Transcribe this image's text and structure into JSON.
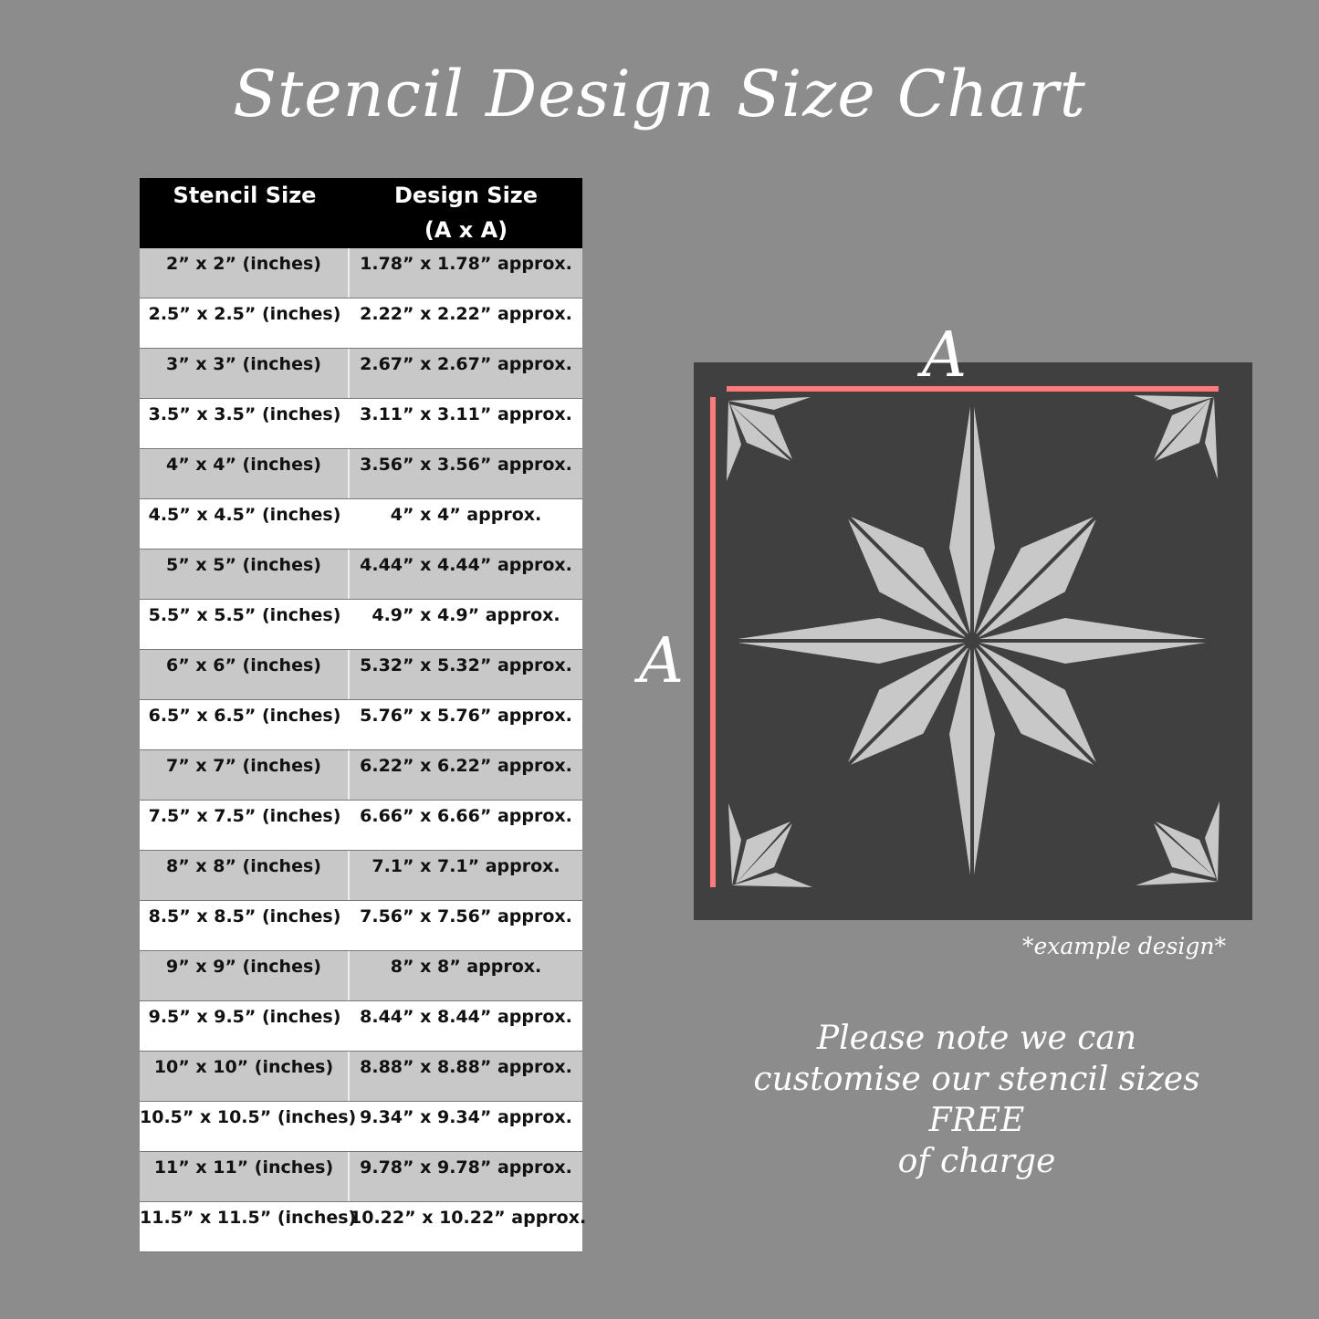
{
  "title": "Stencil Design Size Chart",
  "table": {
    "headers": [
      "Stencil Size",
      "Design Size",
      "(A x A)"
    ],
    "rows": [
      [
        "2” x 2” (inches)",
        "1.78” x 1.78” approx."
      ],
      [
        "2.5” x 2.5” (inches)",
        "2.22” x 2.22” approx."
      ],
      [
        "3” x 3” (inches)",
        "2.67” x 2.67” approx."
      ],
      [
        "3.5” x 3.5” (inches)",
        "3.11” x 3.11” approx."
      ],
      [
        "4” x 4” (inches)",
        "3.56” x 3.56” approx."
      ],
      [
        "4.5” x 4.5” (inches)",
        "4” x 4” approx."
      ],
      [
        "5” x 5” (inches)",
        "4.44” x 4.44” approx."
      ],
      [
        "5.5” x 5.5” (inches)",
        "4.9” x 4.9” approx."
      ],
      [
        "6” x 6” (inches)",
        "5.32” x 5.32” approx."
      ],
      [
        "6.5” x 6.5” (inches)",
        "5.76” x 5.76” approx."
      ],
      [
        "7” x 7” (inches)",
        "6.22” x 6.22” approx."
      ],
      [
        "7.5” x 7.5” (inches)",
        "6.66” x 6.66” approx."
      ],
      [
        "8” x 8” (inches)",
        "7.1” x 7.1” approx."
      ],
      [
        "8.5” x 8.5” (inches)",
        "7.56” x 7.56” approx."
      ],
      [
        "9” x 9” (inches)",
        "8” x 8” approx."
      ],
      [
        "9.5” x 9.5” (inches)",
        "8.44” x 8.44” approx."
      ],
      [
        "10” x 10” (inches)",
        "8.88” x 8.88” approx."
      ],
      [
        "10.5” x 10.5” (inches)",
        "9.34” x 9.34” approx."
      ],
      [
        "11” x 11” (inches)",
        "9.78” x 9.78” approx."
      ],
      [
        "11.5” x 11.5” (inches)",
        "10.22” x 10.22” approx."
      ]
    ]
  },
  "diagram": {
    "dimension_label_top": "A",
    "dimension_label_left": "A",
    "caption": "*example design*",
    "colors": {
      "background": "#404040",
      "star": "#c8c8c8",
      "dimension_line": "#ff7b7b"
    }
  },
  "note": [
    "Please note we can",
    "customise our stencil sizes",
    "FREE",
    "of charge"
  ]
}
